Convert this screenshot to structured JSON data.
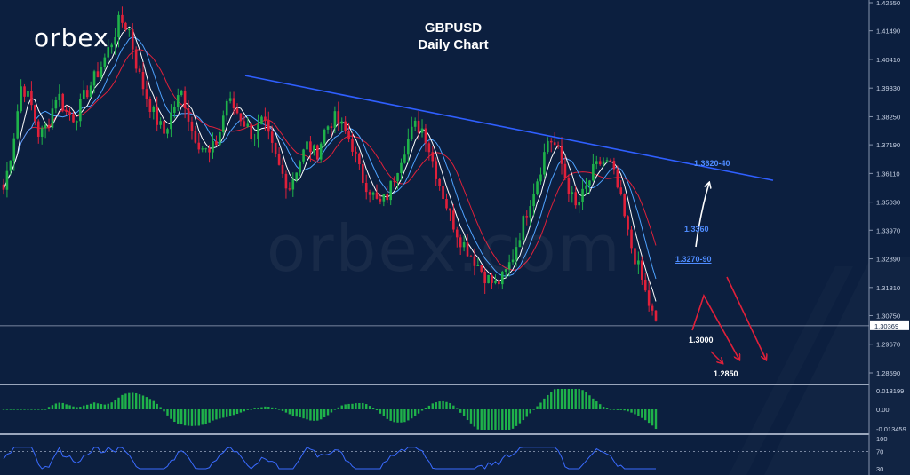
{
  "logo": "orbex",
  "watermark": "orbex.com",
  "title": "GBPUSD",
  "subtitle": "Daily Chart",
  "chart_data": {
    "type": "candlestick",
    "symbol": "GBPUSD",
    "timeframe": "Daily Chart",
    "price_axis_ticks": [
      "1.42550",
      "1.41490",
      "1.40410",
      "1.39330",
      "1.38250",
      "1.37190",
      "1.36110",
      "1.35030",
      "1.33970",
      "1.32890",
      "1.31810",
      "1.30750",
      "1.29670",
      "1.28590"
    ],
    "ylim": [
      1.2815,
      1.427
    ],
    "current_price": "1.30369",
    "colors": {
      "up": "#1fb24a",
      "down": "#e0203a",
      "trendline": "#2f5fff",
      "ma_fast": "#ffffff",
      "ma_mid": "#4fa3ff",
      "ma_slow": "#e0203a",
      "background": "#0c1f3f"
    },
    "close_path": [
      1.355,
      1.372,
      1.395,
      1.388,
      1.375,
      1.38,
      1.392,
      1.384,
      1.382,
      1.39,
      1.396,
      1.402,
      1.41,
      1.419,
      1.416,
      1.4,
      1.39,
      1.382,
      1.376,
      1.386,
      1.392,
      1.378,
      1.372,
      1.368,
      1.374,
      1.389,
      1.385,
      1.38,
      1.375,
      1.381,
      1.371,
      1.362,
      1.356,
      1.365,
      1.372,
      1.368,
      1.378,
      1.382,
      1.378,
      1.372,
      1.36,
      1.355,
      1.349,
      1.353,
      1.363,
      1.372,
      1.379,
      1.378,
      1.366,
      1.355,
      1.345,
      1.337,
      1.332,
      1.327,
      1.322,
      1.319,
      1.322,
      1.33,
      1.341,
      1.352,
      1.362,
      1.375,
      1.37,
      1.358,
      1.348,
      1.354,
      1.362,
      1.366,
      1.364,
      1.352,
      1.336,
      1.326,
      1.314,
      1.304
    ],
    "resistance_trendline": {
      "from": 1.398,
      "to": 1.3585
    },
    "annotations": {
      "resistance": "1.3620-40",
      "upside_target": "1.3360",
      "level_mid": "1.3270-90",
      "support": "1.3000",
      "downside_target": "1.2850"
    },
    "macd": {
      "ticks": [
        "0.013199",
        "0.00",
        "-0.013459"
      ],
      "ylim": [
        -0.0135,
        0.0135
      ]
    },
    "rsi": {
      "ticks": [
        "100",
        "70",
        "30"
      ],
      "ylim": [
        30,
        100
      ]
    }
  }
}
